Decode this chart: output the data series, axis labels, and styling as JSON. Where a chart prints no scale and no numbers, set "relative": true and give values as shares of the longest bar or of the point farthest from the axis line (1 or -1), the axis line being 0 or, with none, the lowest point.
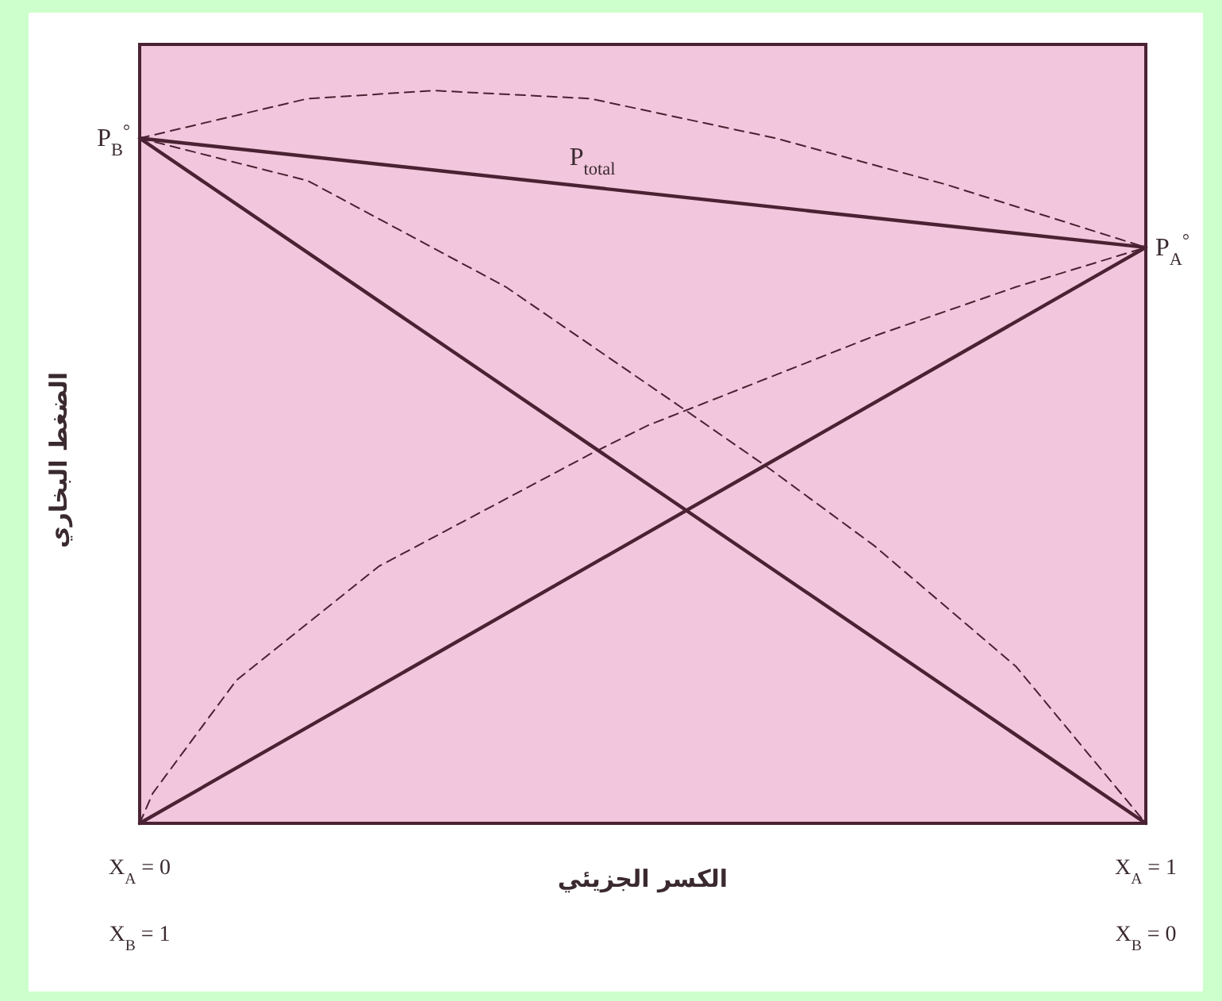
{
  "chart_data": {
    "type": "line",
    "relative": true,
    "tick_labels": "x",
    "xlabel": "الكسر الجزيئي",
    "ylabel": "الضغط البخاري",
    "xlim": [
      0,
      1
    ],
    "xticks": [
      {
        "value": 0,
        "label": "X$_{A}$ = 0"
      },
      {
        "value": 1,
        "label": "X$_{A}$ = 1"
      }
    ],
    "annotations": [
      "X$_{B}$ = 1",
      "X$_{B}$ = 0",
      {
        "text": "P$_{B}$$^{°}$",
        "x": 0,
        "y": 0.935
      },
      {
        "text": "P$_{A}$$^{°}$",
        "x": 1,
        "y": 0.786
      }
    ],
    "series": [
      {
        "color": "#4a2233",
        "line_style": "solid",
        "x": [
          0,
          1
        ],
        "values": [
          0.935,
          0
        ]
      },
      {
        "color": "#4a2233",
        "line_style": "solid",
        "x": [
          0,
          1
        ],
        "values": [
          0,
          0.786
        ]
      },
      {
        "name": "P$_{total}$",
        "color": "#4a2233",
        "line_style": "solid",
        "x": [
          0,
          1
        ],
        "values": [
          0.935,
          0.786
        ]
      },
      {
        "color": "#4a2233",
        "line_style": "dashed",
        "x": [
          0,
          0.167,
          0.364,
          0.539,
          0.625,
          0.73,
          0.871,
          1
        ],
        "values": [
          0.935,
          0.877,
          0.732,
          0.567,
          0.485,
          0.379,
          0.214,
          0
        ]
      },
      {
        "color": "#4a2233",
        "line_style": "dashed",
        "x": [
          0,
          0.013,
          0.096,
          0.238,
          0.448,
          0.505,
          0.73,
          0.871,
          1
        ],
        "values": [
          0,
          0.041,
          0.195,
          0.351,
          0.504,
          0.543,
          0.665,
          0.732,
          0.786
        ]
      },
      {
        "color": "#4a2233",
        "line_style": "dashed",
        "x": [
          0,
          0.167,
          0.293,
          0.448,
          0.632,
          0.801,
          1
        ],
        "values": [
          0.935,
          0.989,
          1.0,
          0.989,
          0.935,
          0.872,
          0.786
        ]
      }
    ]
  }
}
